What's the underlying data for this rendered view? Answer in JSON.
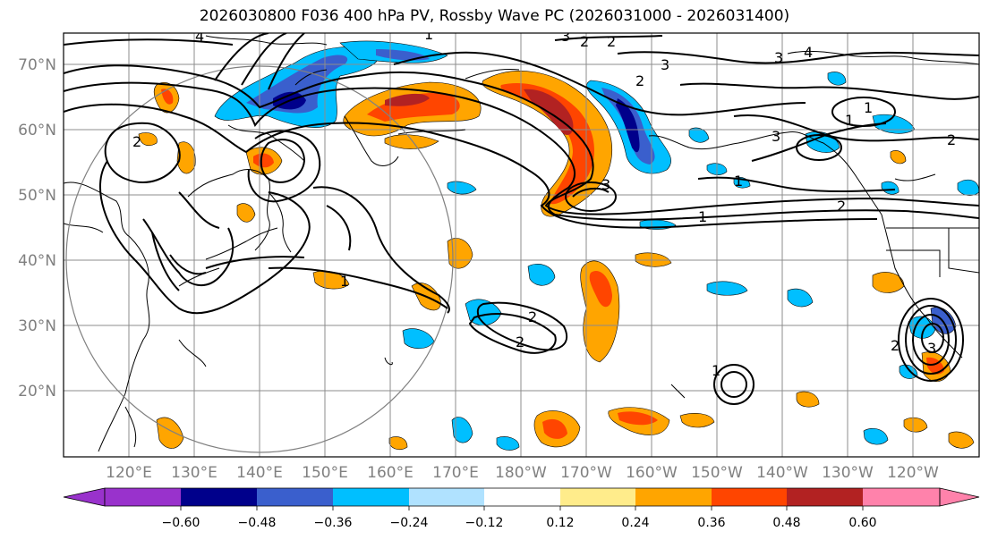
{
  "title": "2026030800 F036 400 hPa PV, Rossby Wave PC (2026031000 - 2026031400)",
  "lat_labels": [
    "70°N",
    "60°N",
    "50°N",
    "40°N",
    "30°N",
    "20°N"
  ],
  "lon_labels": [
    "120°E",
    "130°E",
    "140°E",
    "150°E",
    "160°E",
    "170°E",
    "180°W",
    "170°W",
    "160°W",
    "150°W",
    "140°W",
    "130°W",
    "120°W"
  ],
  "colorbar": {
    "ticks": [
      "−0.60",
      "−0.48",
      "−0.36",
      "−0.24",
      "−0.12",
      "0.12",
      "0.24",
      "0.36",
      "0.48",
      "0.60"
    ],
    "colors": [
      "#9932cc",
      "#00008b",
      "#3a5fcd",
      "#00bfff",
      "#b0e2ff",
      "#ffffff",
      "#ffec8b",
      "#ffa500",
      "#ff4500",
      "#b22222",
      "#ff82ab"
    ]
  },
  "contour_labels": {
    "c1": "4",
    "c2": "3",
    "c3": "2",
    "c4": "2",
    "c5": "3",
    "c6": "3",
    "c7": "4",
    "c8": "1",
    "c9": "3",
    "c10": "2",
    "c11": "2",
    "c12": "1",
    "c13": "2",
    "c14": "1",
    "c15": "3",
    "c16": "1",
    "c17": "2",
    "c18": "2",
    "c19": "2",
    "c20": "1",
    "c21": "1",
    "c22": "3",
    "c23": "2",
    "c24": "1"
  }
}
